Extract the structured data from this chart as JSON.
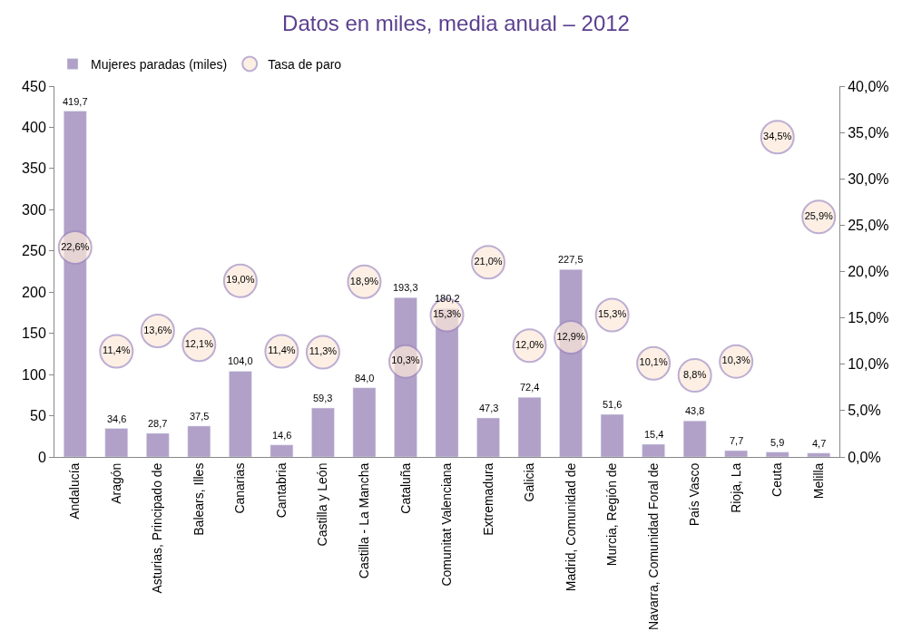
{
  "chart_data": {
    "type": "bar",
    "title": "Datos en miles, media anual – 2012",
    "categories": [
      "Andalucía",
      "Aragón",
      "Asturias, Principado de",
      "Balears, Illes",
      "Canarias",
      "Cantabria",
      "Castilla y León",
      "Castilla - La Mancha",
      "Cataluña",
      "Comunitat Valenciana",
      "Extremadura",
      "Galicia",
      "Madrid, Comunidad de",
      "Murcia, Región de",
      "Navarra, Comunidad Foral de",
      "País Vasco",
      "Rioja, La",
      "Ceuta",
      "Melilla"
    ],
    "series": [
      {
        "name": "Mujeres paradas (miles)",
        "color": "#b1a0c7",
        "values": [
          419.7,
          34.6,
          28.7,
          37.5,
          104.0,
          14.6,
          59.3,
          84.0,
          193.3,
          180.2,
          47.3,
          72.4,
          227.5,
          51.6,
          15.4,
          43.8,
          7.7,
          5.9,
          4.7
        ],
        "value_labels": [
          "419,7",
          "34,6",
          "28,7",
          "37,5",
          "104,0",
          "14,6",
          "59,3",
          "84,0",
          "193,3",
          "180,2",
          "47,3",
          "72,4",
          "227,5",
          "51,6",
          "15,4",
          "43,8",
          "7,7",
          "5,9",
          "4,7"
        ]
      },
      {
        "name": "Tasa de paro",
        "type": "scatter",
        "axis": "y2",
        "color": "#fde9d9",
        "marker": "circle",
        "values": [
          22.6,
          11.4,
          13.6,
          12.1,
          19.0,
          11.4,
          11.3,
          18.9,
          10.3,
          15.3,
          21.0,
          12.0,
          12.9,
          15.3,
          10.1,
          8.8,
          10.3,
          34.5,
          25.9
        ],
        "value_labels": [
          "22,6%",
          "11,4%",
          "13,6%",
          "12,1%",
          "19,0%",
          "11,4%",
          "11,3%",
          "18,9%",
          "10,3%",
          "15,3%",
          "21,0%",
          "12,0%",
          "12,9%",
          "15,3%",
          "10,1%",
          "8,8%",
          "10,3%",
          "34,5%",
          "25,9%"
        ]
      }
    ],
    "ylim": [
      0,
      450
    ],
    "yticks": [
      0,
      50,
      100,
      150,
      200,
      250,
      300,
      350,
      400,
      450
    ],
    "y2lim": [
      0,
      40
    ],
    "y2ticks": [
      {
        "value": 0,
        "label": "0,0%"
      },
      {
        "value": 5,
        "label": "5,0%"
      },
      {
        "value": 10,
        "label": "10,0%"
      },
      {
        "value": 15,
        "label": "15,0%"
      },
      {
        "value": 20,
        "label": "20,0%"
      },
      {
        "value": 25,
        "label": "25,0%"
      },
      {
        "value": 30,
        "label": "30,0%"
      },
      {
        "value": 35,
        "label": "35,0%"
      },
      {
        "value": 40,
        "label": "40,0%"
      }
    ],
    "legend": "top left"
  }
}
